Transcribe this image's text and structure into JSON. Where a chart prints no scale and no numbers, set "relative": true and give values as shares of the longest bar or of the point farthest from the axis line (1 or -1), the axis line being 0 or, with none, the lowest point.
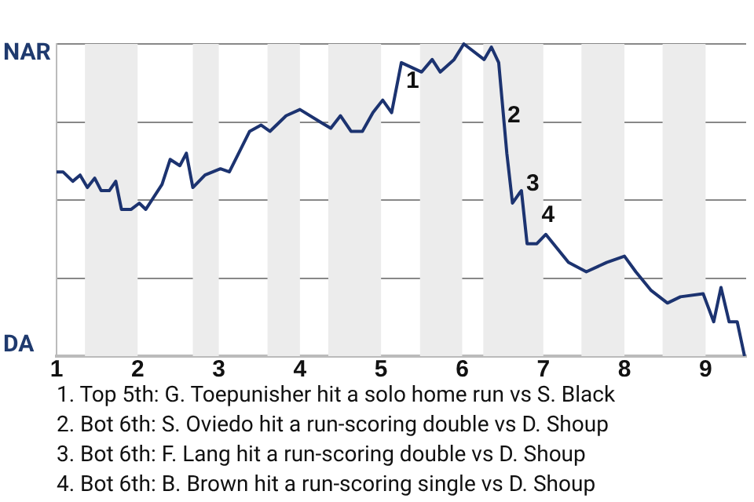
{
  "chart_data": {
    "type": "line",
    "relative": true,
    "grid": "y",
    "legend": false,
    "marker": "none",
    "line_style": "solid",
    "xlim": [
      1,
      9.5
    ],
    "xticks": [
      1,
      2,
      3,
      4,
      5,
      6,
      7,
      8,
      9
    ],
    "bands": [
      {
        "axis": "x",
        "from": 1.35,
        "to": 2,
        "color": "#ececec"
      },
      {
        "axis": "x",
        "from": 2.68,
        "to": 3,
        "color": "#ececec"
      },
      {
        "axis": "x",
        "from": 3.6,
        "to": 4,
        "color": "#ececec"
      },
      {
        "axis": "x",
        "from": 4.35,
        "to": 5,
        "color": "#ececec"
      },
      {
        "axis": "x",
        "from": 5.48,
        "to": 6,
        "color": "#ececec"
      },
      {
        "axis": "x",
        "from": 6.26,
        "to": 7,
        "color": "#ececec"
      },
      {
        "axis": "x",
        "from": 7.47,
        "to": 8,
        "color": "#ececec"
      },
      {
        "axis": "x",
        "from": 8.47,
        "to": 9,
        "color": "#ececec"
      }
    ],
    "series": [
      {
        "color": "#1c3370",
        "x": [
          1,
          1.08,
          1.2,
          1.29,
          1.38,
          1.47,
          1.55,
          1.65,
          1.73,
          1.8,
          1.92,
          2.02,
          2.1,
          2.3,
          2.4,
          2.52,
          2.6,
          2.68,
          2.83,
          3.02,
          3.13,
          3.38,
          3.52,
          3.63,
          3.83,
          4,
          4.25,
          4.38,
          4.5,
          4.63,
          4.77,
          4.9,
          5.02,
          5.13,
          5.25,
          5.5,
          5.63,
          5.73,
          5.9,
          6.02,
          6.27,
          6.36,
          6.45,
          6.55,
          6.62,
          6.7,
          6.73,
          6.8,
          6.92,
          7.03,
          7.31,
          7.53,
          7.78,
          8,
          8.14,
          8.33,
          8.53,
          8.69,
          8.97,
          9.1,
          9.19,
          9.29,
          9.39,
          9.48
        ],
        "values": [
          0.59,
          0.59,
          0.56,
          0.58,
          0.54,
          0.57,
          0.53,
          0.53,
          0.56,
          0.47,
          0.47,
          0.49,
          0.47,
          0.55,
          0.63,
          0.61,
          0.65,
          0.54,
          0.58,
          0.6,
          0.59,
          0.72,
          0.74,
          0.72,
          0.77,
          0.79,
          0.75,
          0.73,
          0.77,
          0.72,
          0.72,
          0.78,
          0.82,
          0.78,
          0.94,
          0.91,
          0.95,
          0.91,
          0.95,
          1,
          0.95,
          0.99,
          0.94,
          0.65,
          0.49,
          0.52,
          0.53,
          0.36,
          0.36,
          0.39,
          0.3,
          0.27,
          0.3,
          0.32,
          0.27,
          0.21,
          0.17,
          0.19,
          0.2,
          0.11,
          0.22,
          0.11,
          0.11,
          0
        ]
      }
    ],
    "annotations": [
      "NAR",
      "DA",
      {
        "text": "1",
        "x": 5.25,
        "y": 0.88
      },
      {
        "text": "2",
        "x": 6.5,
        "y": 0.77
      },
      {
        "text": "3",
        "x": 6.73,
        "y": 0.55
      },
      {
        "text": "4",
        "x": 6.92,
        "y": 0.45
      },
      "1. Top 5th: G. Toepunisher hit a solo home run vs S. Black",
      "2. Bot 6th: S. Oviedo hit a run-scoring double vs D. Shoup",
      "3. Bot 6th: F. Lang hit a run-scoring double vs D. Shoup",
      "4. Bot 6th: B. Brown hit a run-scoring single vs D. Shoup"
    ]
  }
}
